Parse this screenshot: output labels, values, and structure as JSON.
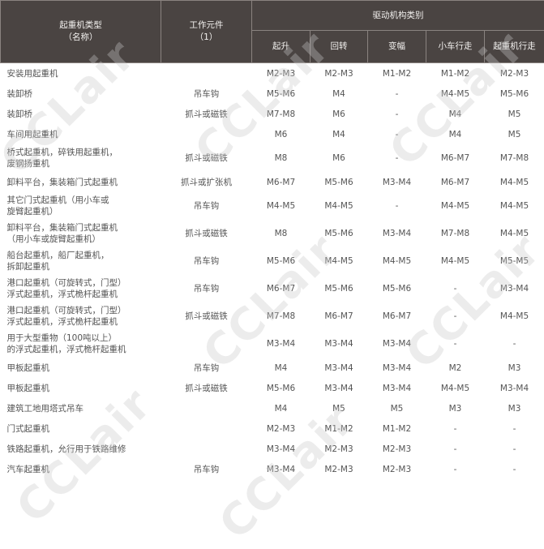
{
  "header": {
    "type_label": "起重机类型",
    "type_sub": "（名称）",
    "element_label": "工作元件",
    "element_sub": "（1）",
    "group_label": "驱动机构类别",
    "columns": [
      "起升",
      "回转",
      "变幅",
      "小车行走",
      "起重机行走"
    ]
  },
  "rows": [
    {
      "name": [
        "安装用起重机"
      ],
      "element": "",
      "values": [
        "M2-M3",
        "M2-M3",
        "M1-M2",
        "M1-M2",
        "M2-M3"
      ]
    },
    {
      "name": [
        "装卸桥"
      ],
      "element": "吊车钩",
      "values": [
        "M5-M6",
        "M4",
        "-",
        "M4-M5",
        "M5-M6"
      ]
    },
    {
      "name": [
        "装卸桥"
      ],
      "element": "抓斗或磁铁",
      "values": [
        "M7-M8",
        "M6",
        "-",
        "M4",
        "M5"
      ]
    },
    {
      "name": [
        "车间用起重机"
      ],
      "element": "",
      "values": [
        "M6",
        "M4",
        "-",
        "M4",
        "M5"
      ]
    },
    {
      "name": [
        "桥式起重机，碎铁用起重机，",
        "废钢扬重机"
      ],
      "element": "抓斗或磁铁",
      "values": [
        "M8",
        "M6",
        "-",
        "M6-M7",
        "M7-M8"
      ]
    },
    {
      "name": [
        "卸料平台，集装箱门式起重机"
      ],
      "element": "抓斗或扩张机",
      "values": [
        "M6-M7",
        "M5-M6",
        "M3-M4",
        "M6-M7",
        "M4-M5"
      ]
    },
    {
      "name": [
        "其它门式起重机（用小车或",
        "旋臂起重机）"
      ],
      "element": "吊车钩",
      "values": [
        "M4-M5",
        "M4-M5",
        "-",
        "M4-M5",
        "M4-M5"
      ]
    },
    {
      "name": [
        "卸料平台，集装箱门式起重机",
        "（用小车或旋臂起重机）"
      ],
      "element": "抓斗或磁铁",
      "values": [
        "M8",
        "M5-M6",
        "M3-M4",
        "M7-M8",
        "M4-M5"
      ]
    },
    {
      "name": [
        "船台起重机，船厂起重机，",
        "拆卸起重机"
      ],
      "element": "吊车钩",
      "values": [
        "M5-M6",
        "M4-M5",
        "M4-M5",
        "M4-M5",
        "M5-M5"
      ]
    },
    {
      "name": [
        "港口起重机（可旋转式，门型）",
        "浮式起重机，浮式桅杆起重机"
      ],
      "element": "吊车钩",
      "values": [
        "M6-M7",
        "M5-M6",
        "M5-M6",
        "-",
        "M3-M4"
      ]
    },
    {
      "name": [
        "港口起重机（可旋转式，门型）",
        "浮式起重机，浮式桅杆起重机"
      ],
      "element": "抓斗或磁铁",
      "values": [
        "M7-M8",
        "M6-M7",
        "M6-M7",
        "-",
        "M4-M5"
      ]
    },
    {
      "name": [
        "用于大型重物（100吨以上）",
        "的浮式起重机，浮式桅杆起重机"
      ],
      "element": "",
      "values": [
        "M3-M4",
        "M3-M4",
        "M3-M4",
        "-",
        "-"
      ]
    },
    {
      "name": [
        "甲板起重机"
      ],
      "element": "吊车钩",
      "values": [
        "M4",
        "M3-M4",
        "M3-M4",
        "M2",
        "M3"
      ]
    },
    {
      "name": [
        "甲板起重机"
      ],
      "element": "抓斗或磁铁",
      "values": [
        "M5-M6",
        "M3-M4",
        "M3-M4",
        "M4-M5",
        "M3-M4"
      ]
    },
    {
      "name": [
        "建筑工地用塔式吊车"
      ],
      "element": "",
      "values": [
        "M4",
        "M5",
        "M5",
        "M3",
        "M3"
      ]
    },
    {
      "name": [
        "门式起重机"
      ],
      "element": "",
      "values": [
        "M2-M3",
        "M1-M2",
        "M1-M2",
        "-",
        "-"
      ]
    },
    {
      "name": [
        "铁路起重机，允行用于铁路维修"
      ],
      "element": "",
      "values": [
        "M3-M4",
        "M2-M3",
        "M2-M3",
        "-",
        "-"
      ]
    },
    {
      "name": [
        "汽车起重机"
      ],
      "element": "吊车钩",
      "values": [
        "M3-M4",
        "M2-M3",
        "M2-M3",
        "-",
        "-"
      ]
    }
  ],
  "watermark": "CCLair",
  "colors": {
    "header_bg": "#4a4442",
    "header_text": "#f2f0ee",
    "body_text": "#555555"
  }
}
